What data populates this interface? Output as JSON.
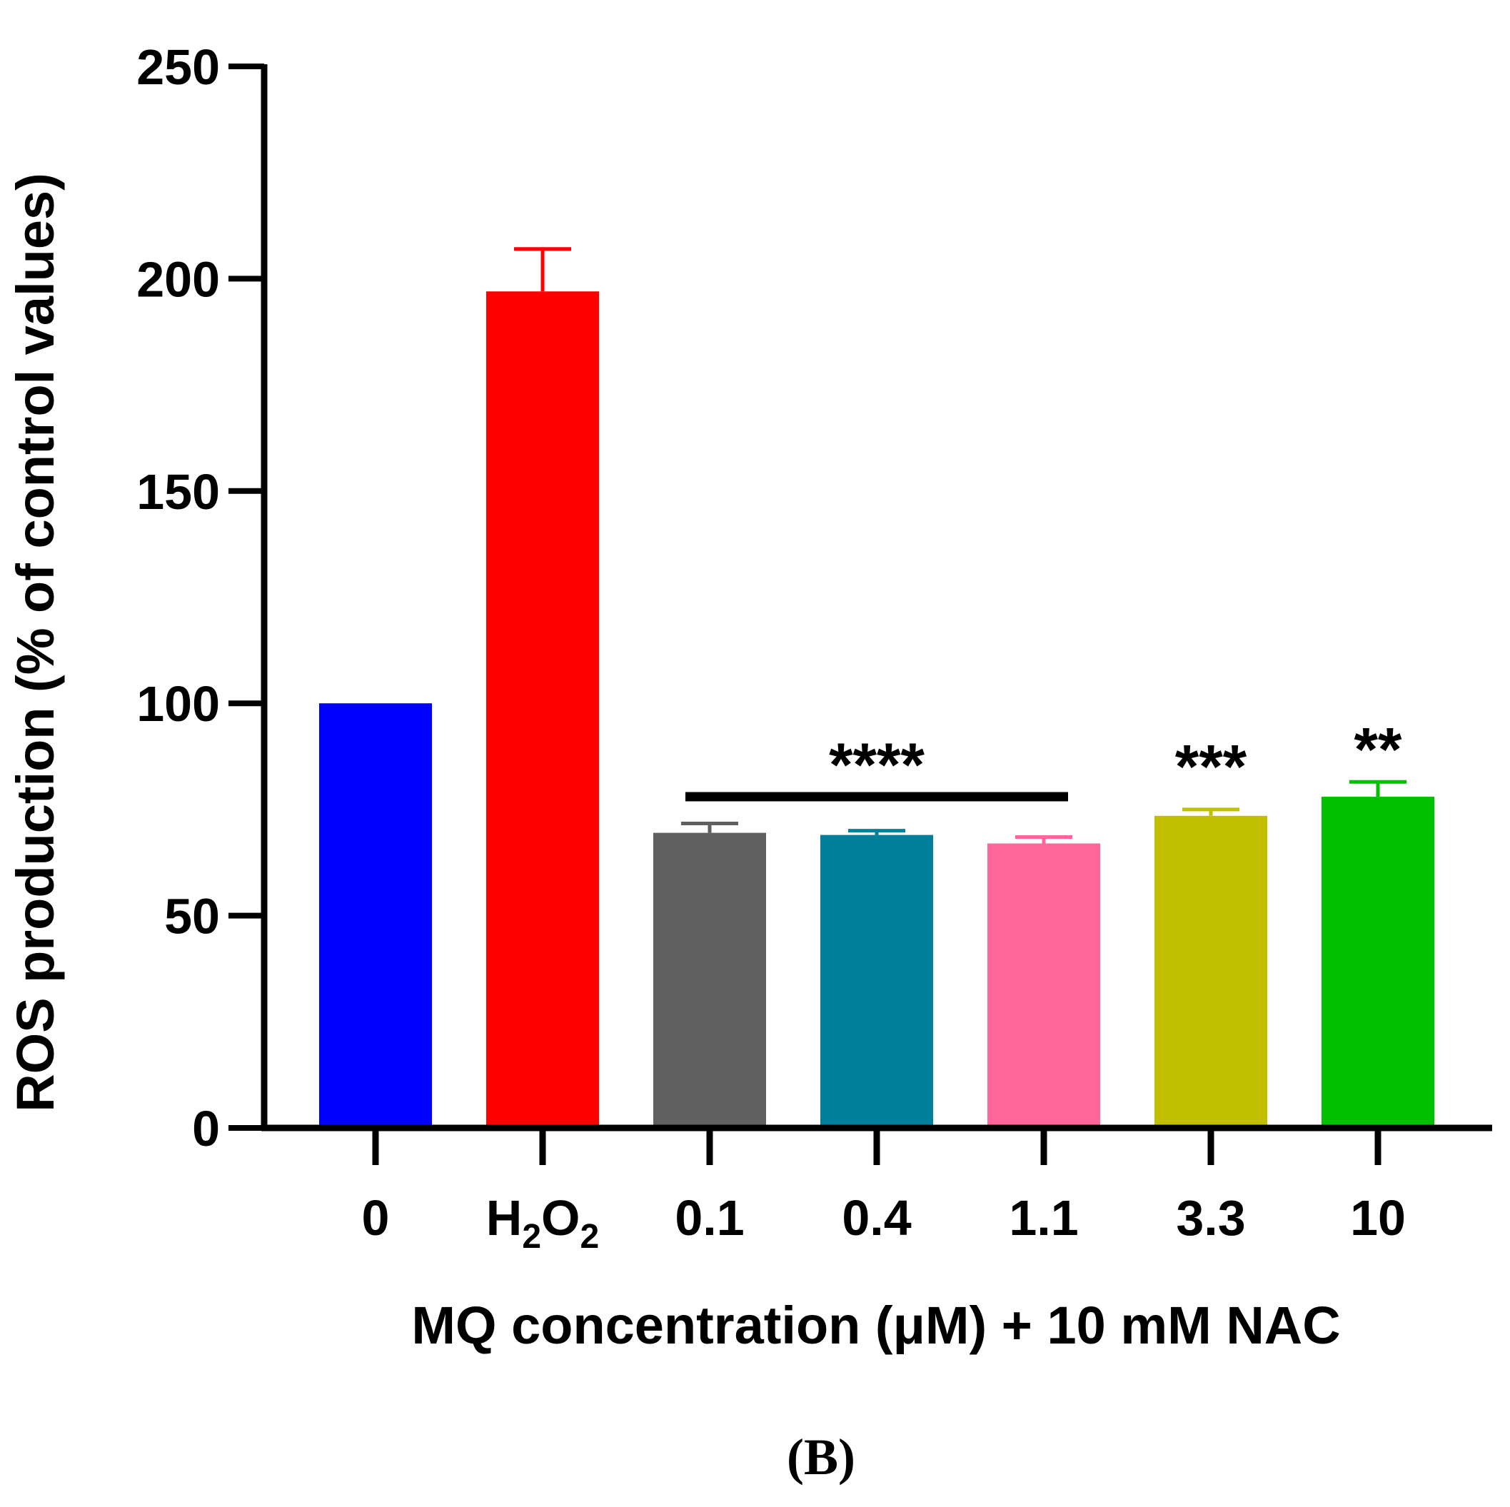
{
  "chart_data": {
    "type": "bar",
    "title": "",
    "ylabel": "ROS production (% of control values)",
    "xlabel": "MQ concentration (μM) + 10 mM NAC",
    "panel_label": "(B)",
    "ylim": [
      0,
      250
    ],
    "yticks": [
      "0",
      "50",
      "100",
      "150",
      "200",
      "250"
    ],
    "categories": [
      {
        "label": "0",
        "sub": ""
      },
      {
        "label": "H",
        "sub": "2",
        "label2": "O",
        "sub2": "2"
      },
      {
        "label": "0.1",
        "sub": ""
      },
      {
        "label": "0.4",
        "sub": ""
      },
      {
        "label": "1.1",
        "sub": ""
      },
      {
        "label": "3.3",
        "sub": ""
      },
      {
        "label": "10",
        "sub": ""
      }
    ],
    "values": [
      100,
      197,
      69.5,
      69,
      67,
      73.5,
      78
    ],
    "errors": [
      0,
      10,
      2.2,
      1,
      1.5,
      1.5,
      3.5
    ],
    "colors": [
      "#0000ff",
      "#ff0000",
      "#606060",
      "#00809a",
      "#ff6699",
      "#c0c000",
      "#00c000"
    ],
    "significance": [
      {
        "text": "****",
        "from": 2,
        "to": 4,
        "bar": true,
        "level": 78
      },
      {
        "text": "***",
        "from": 5,
        "to": 5,
        "bar": false,
        "level": 86
      },
      {
        "text": "**",
        "from": 6,
        "to": 6,
        "bar": false,
        "level": 90
      }
    ]
  }
}
